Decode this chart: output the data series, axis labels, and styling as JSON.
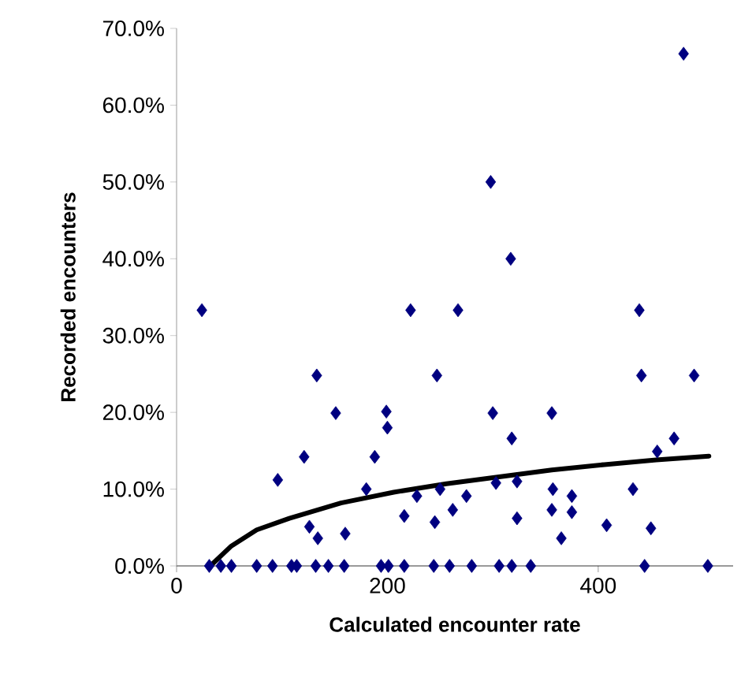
{
  "chart_data": {
    "type": "scatter",
    "xlabel": "Calculated encounter rate",
    "ylabel": "Recorded encounters",
    "xlim": [
      0,
      528
    ],
    "xticks": [
      0,
      200,
      400
    ],
    "ylim": [
      0,
      70
    ],
    "yticks": [
      {
        "value": 0,
        "label": "0.0%"
      },
      {
        "value": 10,
        "label": "10.0%"
      },
      {
        "value": 20,
        "label": "20.0%"
      },
      {
        "value": 30,
        "label": "30.0%"
      },
      {
        "value": 40,
        "label": "40.0%"
      },
      {
        "value": 50,
        "label": "50.0%"
      },
      {
        "value": 60,
        "label": "60.0%"
      },
      {
        "value": 70,
        "label": "70.0%"
      }
    ],
    "grid": false,
    "legend": false,
    "series": [
      {
        "marker": "diamond",
        "color": "#000080",
        "x": [
          31,
          42,
          52,
          76,
          91,
          109,
          114,
          132,
          144,
          159,
          194,
          201,
          216,
          244,
          259,
          280,
          306,
          318,
          336,
          444,
          504,
          24,
          96,
          121,
          126,
          134,
          133,
          151,
          160,
          180,
          188,
          199,
          200,
          216,
          222,
          228,
          245,
          247,
          250,
          262,
          267,
          275,
          298,
          300,
          303,
          317,
          318,
          323,
          323,
          356,
          357,
          356,
          365,
          375,
          375,
          408,
          433,
          439,
          441,
          450,
          456,
          472,
          481,
          491
        ],
        "values": [
          0,
          0,
          0,
          0,
          0,
          0,
          0,
          0,
          0,
          0,
          0,
          0,
          0,
          0,
          0,
          0,
          0,
          0,
          0,
          0,
          0,
          33.3,
          11.2,
          14.2,
          5.1,
          3.6,
          24.8,
          19.9,
          4.2,
          10.0,
          14.2,
          20.1,
          18.0,
          6.5,
          33.3,
          9.1,
          5.7,
          24.8,
          10.0,
          7.3,
          33.3,
          9.1,
          50.0,
          19.9,
          10.8,
          40.0,
          16.6,
          11.0,
          6.2,
          19.9,
          10.0,
          7.3,
          3.6,
          9.1,
          7.0,
          5.3,
          10.0,
          33.3,
          24.8,
          4.9,
          14.9,
          16.6,
          66.7,
          24.8
        ]
      },
      {
        "type": "line",
        "marker": "none",
        "line_style": "solid",
        "color": "#000000",
        "x": [
          32,
          52,
          76,
          107,
          156,
          206,
          256,
          306,
          356,
          406,
          455,
          505
        ],
        "values": [
          0,
          2.6,
          4.7,
          6.2,
          8.2,
          9.6,
          10.7,
          11.6,
          12.5,
          13.2,
          13.8,
          14.3
        ]
      }
    ]
  }
}
